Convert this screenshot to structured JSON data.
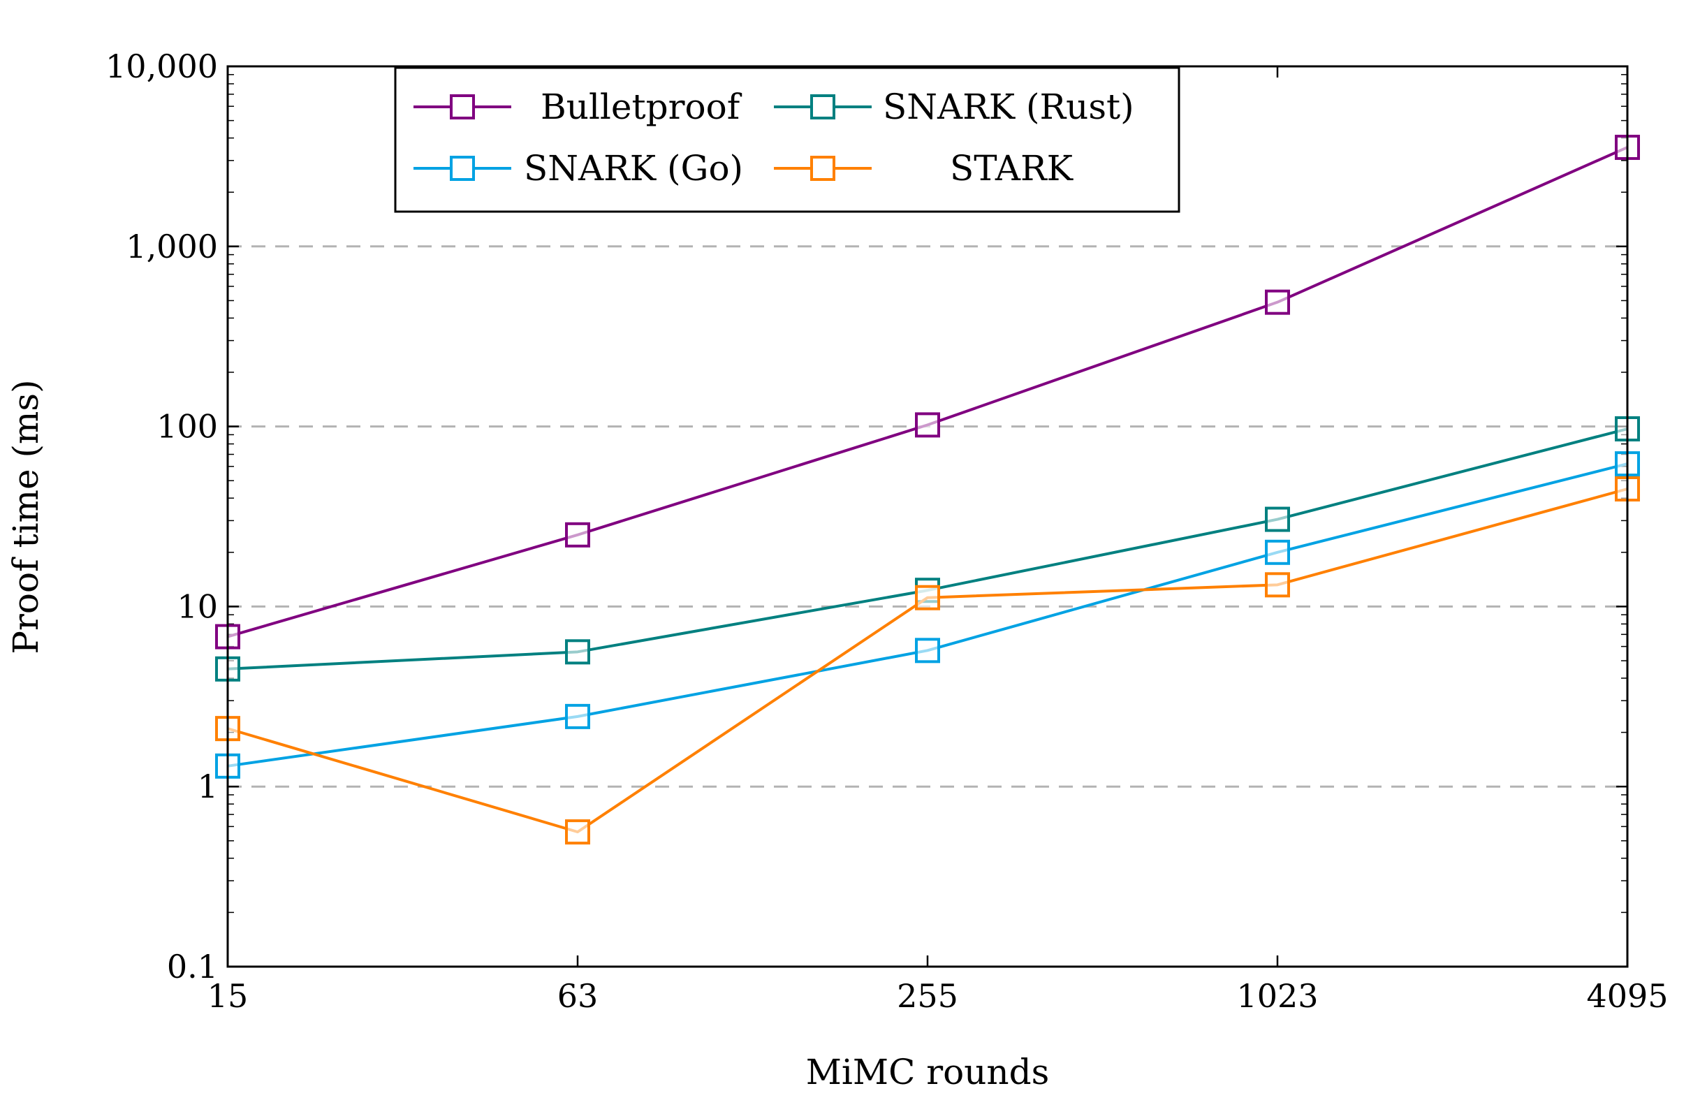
{
  "chart_data": {
    "type": "line",
    "title": "",
    "xlabel": "MiMC rounds",
    "ylabel": "Proof time (ms)",
    "yscale": "log",
    "ylim": [
      0.1,
      10000
    ],
    "grid": "y-major-dashed",
    "legend_position": "top-left",
    "categories": [
      "15",
      "63",
      "255",
      "1023",
      "4095"
    ],
    "y_ticks": [
      {
        "value": 0.1,
        "label": "0.1"
      },
      {
        "value": 1,
        "label": "1"
      },
      {
        "value": 10,
        "label": "10"
      },
      {
        "value": 100,
        "label": "100"
      },
      {
        "value": 1000,
        "label": "1,000"
      },
      {
        "value": 10000,
        "label": "10,000"
      }
    ],
    "series": [
      {
        "name": "Bulletproof",
        "color": "#800080",
        "marker": "square",
        "values": [
          6.8,
          25,
          102,
          490,
          3550
        ]
      },
      {
        "name": "SNARK (Rust)",
        "color": "#008080",
        "marker": "square",
        "values": [
          4.5,
          5.6,
          12.3,
          30.5,
          97
        ]
      },
      {
        "name": "SNARK (Go)",
        "color": "#00a2e3",
        "marker": "square",
        "values": [
          1.3,
          2.45,
          5.7,
          20,
          62
        ]
      },
      {
        "name": "STARK",
        "color": "#ff8000",
        "marker": "square",
        "values": [
          2.1,
          0.56,
          11.2,
          13.2,
          45
        ]
      }
    ]
  }
}
